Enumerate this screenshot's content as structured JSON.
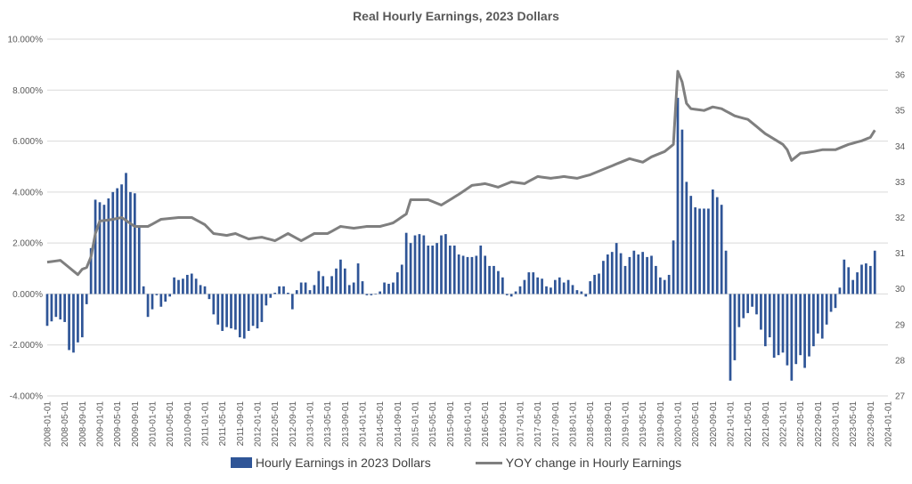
{
  "chart_data": {
    "type": "bar+line",
    "title": "Real Hourly Earnings, 2023 Dollars",
    "y_left": {
      "min": -0.04,
      "max": 0.1,
      "ticks": [
        -0.04,
        -0.02,
        0.0,
        0.02,
        0.04,
        0.06,
        0.08,
        0.1
      ],
      "tick_labels": [
        "-4.000%",
        "-2.000%",
        "0.000%",
        "2.000%",
        "4.000%",
        "6.000%",
        "8.000%",
        "10.000%"
      ],
      "grid": true
    },
    "y_right": {
      "min": 27,
      "max": 37,
      "ticks": [
        27,
        28,
        29,
        30,
        31,
        32,
        33,
        34,
        35,
        36,
        37
      ],
      "tick_labels": [
        "27",
        "28",
        "29",
        "30",
        "31",
        "32",
        "33",
        "34",
        "35",
        "36",
        "37"
      ]
    },
    "x_tick_labels": [
      "2008-01-01",
      "2008-05-01",
      "2008-09-01",
      "2009-01-01",
      "2009-05-01",
      "2009-09-01",
      "2010-01-01",
      "2010-05-01",
      "2010-09-01",
      "2011-01-01",
      "2011-05-01",
      "2011-09-01",
      "2012-01-01",
      "2012-05-01",
      "2012-09-01",
      "2013-01-01",
      "2013-05-01",
      "2013-09-01",
      "2014-01-01",
      "2014-05-01",
      "2014-09-01",
      "2015-01-01",
      "2015-05-01",
      "2015-09-01",
      "2016-01-01",
      "2016-05-01",
      "2016-09-01",
      "2017-01-01",
      "2017-05-01",
      "2017-09-01",
      "2018-01-01",
      "2018-05-01",
      "2018-09-01",
      "2019-01-01",
      "2019-05-01",
      "2019-09-01",
      "2020-01-01",
      "2020-05-01",
      "2020-09-01",
      "2021-01-01",
      "2021-05-01",
      "2021-09-01",
      "2022-01-01",
      "2022-05-01",
      "2022-09-01",
      "2023-01-01",
      "2023-05-01",
      "2023-09-01",
      "2024-01-01"
    ],
    "series": [
      {
        "name": "Hourly Earnings in 2023 Dollars",
        "kind": "bar",
        "axis": "left",
        "color": "#2F5597",
        "anchors": [
          [
            0,
            -1.25
          ],
          [
            2,
            -0.9
          ],
          [
            4,
            -1.1
          ],
          [
            5,
            -2.2
          ],
          [
            6,
            -2.3
          ],
          [
            7,
            -1.9
          ],
          [
            8,
            -1.7
          ],
          [
            9,
            -0.4
          ],
          [
            10,
            1.8
          ],
          [
            11,
            3.7
          ],
          [
            13,
            3.5
          ],
          [
            15,
            4.0
          ],
          [
            17,
            4.3
          ],
          [
            18,
            4.75
          ],
          [
            19,
            4.0
          ],
          [
            20,
            3.95
          ],
          [
            21,
            2.7
          ],
          [
            22,
            0.3
          ],
          [
            23,
            -0.9
          ],
          [
            24,
            -0.6
          ],
          [
            25,
            -0.05
          ],
          [
            26,
            -0.5
          ],
          [
            27,
            -0.3
          ],
          [
            28,
            -0.1
          ],
          [
            29,
            0.65
          ],
          [
            30,
            0.55
          ],
          [
            31,
            0.6
          ],
          [
            32,
            0.75
          ],
          [
            33,
            0.8
          ],
          [
            34,
            0.6
          ],
          [
            35,
            0.35
          ],
          [
            36,
            0.3
          ],
          [
            37,
            -0.2
          ],
          [
            38,
            -0.8
          ],
          [
            39,
            -1.2
          ],
          [
            40,
            -1.45
          ],
          [
            41,
            -1.3
          ],
          [
            43,
            -1.4
          ],
          [
            44,
            -1.7
          ],
          [
            45,
            -1.75
          ],
          [
            46,
            -1.45
          ],
          [
            47,
            -1.25
          ],
          [
            48,
            -1.35
          ],
          [
            49,
            -1.1
          ],
          [
            50,
            -0.45
          ],
          [
            51,
            -0.15
          ],
          [
            52,
            0.05
          ],
          [
            53,
            0.3
          ],
          [
            54,
            0.3
          ],
          [
            55,
            0.05
          ],
          [
            56,
            -0.6
          ],
          [
            57,
            0.15
          ],
          [
            58,
            0.45
          ],
          [
            59,
            0.45
          ],
          [
            60,
            0.15
          ],
          [
            61,
            0.35
          ],
          [
            62,
            0.9
          ],
          [
            63,
            0.7
          ],
          [
            64,
            0.3
          ],
          [
            65,
            0.7
          ],
          [
            66,
            1.0
          ],
          [
            67,
            1.35
          ],
          [
            68,
            1.0
          ],
          [
            69,
            0.35
          ],
          [
            70,
            0.45
          ],
          [
            71,
            1.2
          ],
          [
            72,
            0.5
          ],
          [
            73,
            -0.05
          ],
          [
            74,
            -0.05
          ],
          [
            75,
            0.0
          ],
          [
            76,
            0.1
          ],
          [
            77,
            0.45
          ],
          [
            78,
            0.4
          ],
          [
            79,
            0.45
          ],
          [
            80,
            0.85
          ],
          [
            81,
            1.15
          ],
          [
            82,
            2.4
          ],
          [
            83,
            2.0
          ],
          [
            84,
            2.3
          ],
          [
            85,
            2.35
          ],
          [
            86,
            2.3
          ],
          [
            87,
            1.9
          ],
          [
            88,
            1.9
          ],
          [
            89,
            2.0
          ],
          [
            90,
            2.3
          ],
          [
            91,
            2.35
          ],
          [
            92,
            1.9
          ],
          [
            93,
            1.9
          ],
          [
            94,
            1.55
          ],
          [
            95,
            1.5
          ],
          [
            96,
            1.45
          ],
          [
            97,
            1.45
          ],
          [
            98,
            1.5
          ],
          [
            99,
            1.9
          ],
          [
            100,
            1.5
          ],
          [
            101,
            1.1
          ],
          [
            102,
            1.1
          ],
          [
            103,
            0.9
          ],
          [
            104,
            0.65
          ],
          [
            105,
            -0.05
          ],
          [
            106,
            -0.1
          ],
          [
            107,
            0.1
          ],
          [
            108,
            0.3
          ],
          [
            109,
            0.55
          ],
          [
            110,
            0.85
          ],
          [
            111,
            0.85
          ],
          [
            112,
            0.65
          ],
          [
            113,
            0.6
          ],
          [
            114,
            0.3
          ],
          [
            115,
            0.25
          ],
          [
            116,
            0.55
          ],
          [
            117,
            0.65
          ],
          [
            118,
            0.45
          ],
          [
            119,
            0.55
          ],
          [
            120,
            0.35
          ],
          [
            121,
            0.15
          ],
          [
            122,
            0.1
          ],
          [
            123,
            -0.1
          ],
          [
            124,
            0.5
          ],
          [
            125,
            0.75
          ],
          [
            126,
            0.8
          ],
          [
            127,
            1.3
          ],
          [
            128,
            1.55
          ],
          [
            129,
            1.65
          ],
          [
            130,
            2.0
          ],
          [
            131,
            1.6
          ],
          [
            132,
            1.1
          ],
          [
            133,
            1.45
          ],
          [
            134,
            1.7
          ],
          [
            135,
            1.55
          ],
          [
            136,
            1.65
          ],
          [
            137,
            1.45
          ],
          [
            138,
            1.5
          ],
          [
            139,
            1.1
          ],
          [
            140,
            0.65
          ],
          [
            141,
            0.55
          ],
          [
            142,
            0.75
          ],
          [
            143,
            2.1
          ],
          [
            144,
            7.7
          ],
          [
            145,
            6.45
          ],
          [
            146,
            4.4
          ],
          [
            147,
            3.85
          ],
          [
            148,
            3.4
          ],
          [
            149,
            3.35
          ],
          [
            150,
            3.35
          ],
          [
            151,
            3.35
          ],
          [
            152,
            4.1
          ],
          [
            153,
            3.8
          ],
          [
            154,
            3.5
          ],
          [
            155,
            1.7
          ],
          [
            156,
            -3.4
          ],
          [
            157,
            -2.6
          ],
          [
            158,
            -1.3
          ],
          [
            159,
            -0.95
          ],
          [
            160,
            -0.75
          ],
          [
            161,
            -0.5
          ],
          [
            162,
            -0.8
          ],
          [
            163,
            -1.4
          ],
          [
            164,
            -2.05
          ],
          [
            165,
            -1.7
          ],
          [
            166,
            -2.5
          ],
          [
            167,
            -2.4
          ],
          [
            168,
            -2.3
          ],
          [
            169,
            -2.8
          ],
          [
            170,
            -3.4
          ],
          [
            171,
            -2.75
          ],
          [
            172,
            -2.4
          ],
          [
            173,
            -2.9
          ],
          [
            174,
            -2.45
          ],
          [
            175,
            -2.05
          ],
          [
            176,
            -1.55
          ],
          [
            177,
            -1.75
          ],
          [
            178,
            -1.2
          ],
          [
            179,
            -0.7
          ],
          [
            180,
            -0.55
          ],
          [
            181,
            0.25
          ],
          [
            182,
            1.35
          ],
          [
            183,
            1.05
          ],
          [
            184,
            0.55
          ],
          [
            185,
            0.85
          ],
          [
            186,
            1.15
          ],
          [
            187,
            1.2
          ],
          [
            188,
            1.1
          ],
          [
            189,
            1.7
          ]
        ]
      },
      {
        "name": "YOY change in Hourly Earnings",
        "kind": "line",
        "axis": "right",
        "color": "#7F7F7F",
        "anchors": [
          [
            0,
            30.75
          ],
          [
            3,
            30.8
          ],
          [
            6,
            30.5
          ],
          [
            7,
            30.4
          ],
          [
            8,
            30.55
          ],
          [
            9,
            30.6
          ],
          [
            10,
            30.9
          ],
          [
            11,
            31.55
          ],
          [
            12,
            31.9
          ],
          [
            15,
            31.95
          ],
          [
            17,
            32.0
          ],
          [
            20,
            31.75
          ],
          [
            23,
            31.75
          ],
          [
            26,
            31.95
          ],
          [
            30,
            32.0
          ],
          [
            33,
            32.0
          ],
          [
            36,
            31.8
          ],
          [
            38,
            31.55
          ],
          [
            41,
            31.5
          ],
          [
            43,
            31.55
          ],
          [
            46,
            31.4
          ],
          [
            49,
            31.45
          ],
          [
            52,
            31.35
          ],
          [
            55,
            31.55
          ],
          [
            58,
            31.35
          ],
          [
            61,
            31.55
          ],
          [
            64,
            31.55
          ],
          [
            67,
            31.75
          ],
          [
            70,
            31.7
          ],
          [
            73,
            31.75
          ],
          [
            76,
            31.75
          ],
          [
            79,
            31.85
          ],
          [
            82,
            32.1
          ],
          [
            83,
            32.5
          ],
          [
            87,
            32.5
          ],
          [
            90,
            32.35
          ],
          [
            94,
            32.65
          ],
          [
            97,
            32.9
          ],
          [
            100,
            32.95
          ],
          [
            103,
            32.85
          ],
          [
            106,
            33.0
          ],
          [
            109,
            32.95
          ],
          [
            112,
            33.15
          ],
          [
            115,
            33.1
          ],
          [
            118,
            33.15
          ],
          [
            121,
            33.1
          ],
          [
            124,
            33.2
          ],
          [
            127,
            33.35
          ],
          [
            130,
            33.5
          ],
          [
            133,
            33.65
          ],
          [
            136,
            33.55
          ],
          [
            138,
            33.7
          ],
          [
            141,
            33.85
          ],
          [
            143,
            34.05
          ],
          [
            144,
            36.1
          ],
          [
            145,
            35.8
          ],
          [
            146,
            35.2
          ],
          [
            147,
            35.05
          ],
          [
            150,
            35.0
          ],
          [
            152,
            35.1
          ],
          [
            154,
            35.05
          ],
          [
            157,
            34.85
          ],
          [
            160,
            34.75
          ],
          [
            162,
            34.55
          ],
          [
            164,
            34.35
          ],
          [
            166,
            34.2
          ],
          [
            168,
            34.05
          ],
          [
            169,
            33.9
          ],
          [
            170,
            33.6
          ],
          [
            172,
            33.8
          ],
          [
            175,
            33.85
          ],
          [
            177,
            33.9
          ],
          [
            180,
            33.9
          ],
          [
            183,
            34.05
          ],
          [
            186,
            34.15
          ],
          [
            188,
            34.25
          ],
          [
            189,
            34.45
          ]
        ]
      }
    ],
    "legend": {
      "position": "bottom",
      "entries": [
        "Hourly Earnings in 2023 Dollars",
        "YOY change in Hourly Earnings"
      ]
    },
    "n_months": 193
  }
}
